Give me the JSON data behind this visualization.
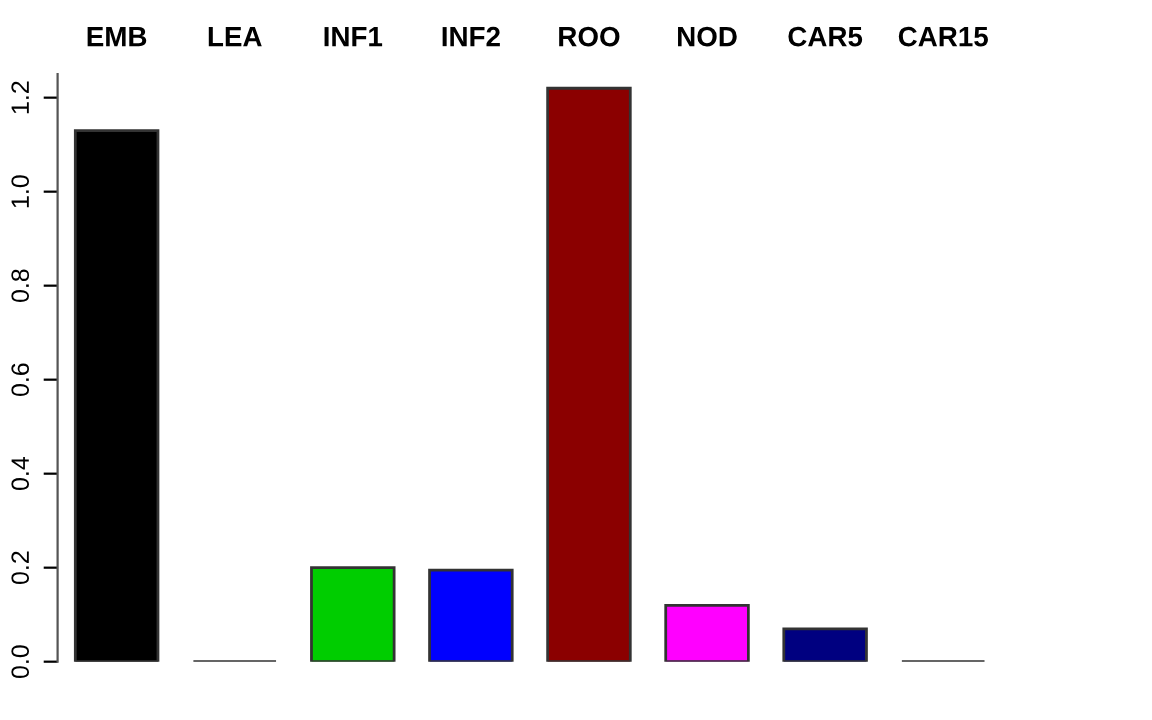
{
  "chart_data": {
    "type": "bar",
    "categories": [
      "EMB",
      "LEA",
      "INF1",
      "INF2",
      "ROO",
      "NOD",
      "CAR5",
      "CAR15"
    ],
    "values": [
      1.13,
      0.0,
      0.2,
      0.195,
      1.22,
      0.12,
      0.07,
      0.0
    ],
    "colors": [
      "#000000",
      "#333333",
      "#00cd00",
      "#0000ff",
      "#8b0000",
      "#ff00ff",
      "#000080",
      "#333333"
    ],
    "ylim": [
      0,
      1.25
    ],
    "yticks": [
      {
        "value": 0,
        "label": "0.0"
      },
      {
        "value": 0.2,
        "label": "0.2"
      },
      {
        "value": 0.4,
        "label": "0.4"
      },
      {
        "value": 0.6,
        "label": "0.6"
      },
      {
        "value": 0.8,
        "label": "0.8"
      },
      {
        "value": 1.0,
        "label": "1.0"
      },
      {
        "value": 1.2,
        "label": "1.2"
      }
    ],
    "grid": false,
    "legend": false
  }
}
